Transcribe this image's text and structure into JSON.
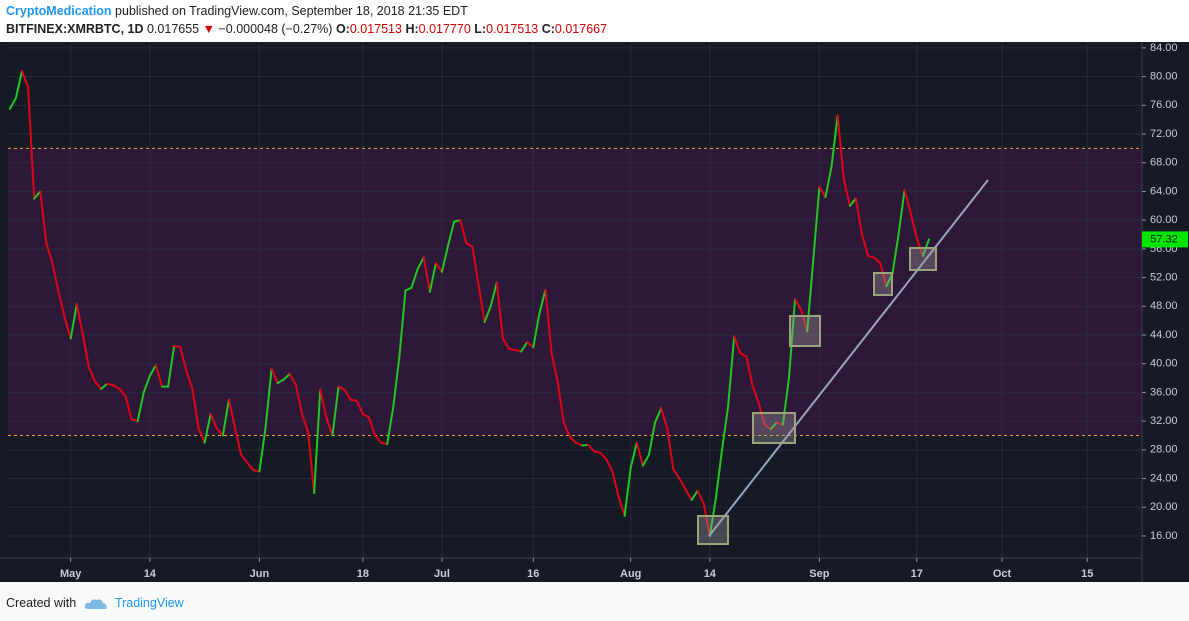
{
  "header": {
    "author": "CryptoMedication",
    "published": "published on TradingView.com, September 18, 2018 21:35 EDT",
    "symbol": "BITFINEX:XMRBTC, 1D",
    "price": "0.017655",
    "arrow": "▼",
    "change": "−0.000048 (−0.27%)",
    "open_label": "O:",
    "open": "0.017513",
    "high_label": "H:",
    "high": "0.017770",
    "low_label": "L:",
    "low": "0.017513",
    "close_label": "C:",
    "close": "0.017667"
  },
  "footer": {
    "created": "Created with",
    "brand": "TradingView"
  },
  "chart_data": {
    "type": "line",
    "x": [
      0,
      1,
      2,
      3,
      4,
      5,
      6,
      7,
      8,
      9,
      10,
      11,
      12,
      13,
      14,
      15,
      16,
      17,
      18,
      19,
      20,
      21,
      22,
      23,
      24,
      25,
      26,
      27,
      28,
      29,
      30,
      31,
      32,
      33,
      34,
      35,
      36,
      37,
      38,
      39,
      40,
      41,
      42,
      43,
      44,
      45,
      46,
      47,
      48,
      49,
      50,
      51,
      52,
      53,
      54,
      55,
      56,
      57,
      58,
      59,
      60,
      61,
      62,
      63,
      64,
      65,
      66,
      67,
      68,
      69,
      70,
      71,
      72,
      73,
      74,
      75,
      76,
      77,
      78,
      79,
      80,
      81,
      82,
      83,
      84,
      85,
      86,
      87,
      88,
      89,
      90,
      91,
      92,
      93,
      94,
      95,
      96,
      97,
      98,
      99,
      100,
      101,
      102,
      103,
      104,
      105,
      106,
      107,
      108,
      109,
      110,
      111,
      112,
      113,
      114,
      115,
      116,
      117,
      118,
      119,
      120,
      121,
      122,
      123,
      124,
      125,
      126,
      127,
      128,
      129,
      130,
      131,
      132,
      133,
      134,
      135,
      136,
      137,
      138,
      139,
      140,
      141,
      142,
      143,
      144,
      145,
      146,
      147,
      148,
      149,
      150,
      151
    ],
    "series": [
      {
        "up_color": "#22c722",
        "down_color": "#e0001a",
        "values": [
          75.5,
          77,
          80.8,
          78.5,
          63,
          64,
          56.8,
          54,
          50,
          46.5,
          43.5,
          48.3,
          44,
          39.5,
          37.5,
          36.5,
          37.2,
          37,
          36.5,
          35.5,
          32.3,
          32,
          36,
          38.3,
          39.8,
          36.8,
          36.8,
          42.5,
          42.3,
          39,
          36.5,
          31,
          29,
          33,
          31,
          30,
          35,
          31,
          27.3,
          26.2,
          25.2,
          25,
          31,
          39.3,
          37.3,
          37.8,
          38.6,
          37,
          33,
          30.5,
          22,
          36.4,
          32.5,
          30,
          36.8,
          36.4,
          35,
          34.8,
          33,
          32.5,
          30,
          29,
          28.8,
          34,
          41,
          50.2,
          50.6,
          53.2,
          54.8,
          50,
          54,
          52.8,
          56.5,
          59.8,
          60,
          56.8,
          56.3,
          51,
          45.8,
          48,
          51.3,
          43.5,
          42.1,
          41.9,
          41.7,
          43,
          42.3,
          47,
          50.3,
          41.5,
          37.5,
          31.8,
          29.8,
          29,
          28.6,
          28.7,
          27.8,
          27.6,
          26.7,
          25,
          21.5,
          18.8,
          25.5,
          29,
          25.8,
          27.3,
          31.8,
          33.8,
          31,
          25.3,
          24,
          22.5,
          21,
          22.3,
          20.5,
          16,
          21.3,
          28,
          34,
          43.8,
          41.5,
          41,
          37,
          34.6,
          31.5,
          30.9,
          31.8,
          31.5,
          38,
          49,
          47.5,
          44.5,
          54.5,
          64.6,
          63.2,
          67.5,
          74.6,
          65.8,
          62,
          63,
          58,
          55,
          54.8,
          54,
          50.8,
          52.5,
          58,
          64.2,
          61,
          57.5,
          55,
          57.32
        ]
      }
    ],
    "last_value_color": "#00e600",
    "levels": [
      70,
      30
    ],
    "level_color": "#e8a93a",
    "band_color": "#2e1838",
    "xlim": [
      -0.3,
      186
    ],
    "xticks": [
      {
        "value": 10,
        "label": "May"
      },
      {
        "value": 23,
        "label": "14"
      },
      {
        "value": 41,
        "label": "Jun"
      },
      {
        "value": 58,
        "label": "18"
      },
      {
        "value": 71,
        "label": "Jul"
      },
      {
        "value": 86,
        "label": "16"
      },
      {
        "value": 102,
        "label": "Aug"
      },
      {
        "value": 115,
        "label": "14"
      },
      {
        "value": 133,
        "label": "Sep"
      },
      {
        "value": 149,
        "label": "17"
      },
      {
        "value": 163,
        "label": "Oct"
      },
      {
        "value": 177,
        "label": "15"
      }
    ],
    "ylim": [
      12.93,
      85.1
    ],
    "yticks": [
      {
        "value": 16,
        "label": "16.00"
      },
      {
        "value": 20,
        "label": "20.00"
      },
      {
        "value": 24,
        "label": "24.00"
      },
      {
        "value": 28,
        "label": "28.00"
      },
      {
        "value": 32,
        "label": "32.00"
      },
      {
        "value": 36,
        "label": "36.00"
      },
      {
        "value": 40,
        "label": "40.00"
      },
      {
        "value": 44,
        "label": "44.00"
      },
      {
        "value": 48,
        "label": "48.00"
      },
      {
        "value": 52,
        "label": "52.00"
      },
      {
        "value": 56,
        "label": "56.00"
      },
      {
        "value": 60,
        "label": "60.00"
      },
      {
        "value": 64,
        "label": "64.00"
      },
      {
        "value": 68,
        "label": "68.00"
      },
      {
        "value": 72,
        "label": "72.00"
      },
      {
        "value": 76,
        "label": "76.00"
      },
      {
        "value": 80,
        "label": "80.00"
      },
      {
        "value": 84,
        "label": "84.00"
      }
    ],
    "grid": true
  }
}
